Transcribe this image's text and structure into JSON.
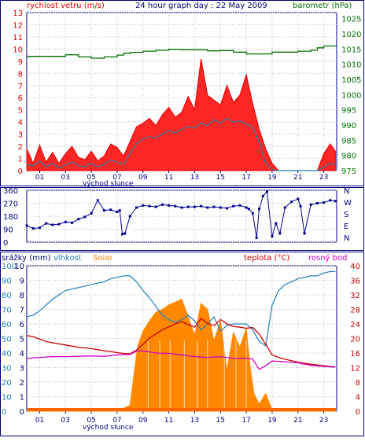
{
  "colors": {
    "wind": "#e00000",
    "gust_area": "#ff0000",
    "baro": "#007000",
    "dir": "#000090",
    "humidity": "#1f7fbf",
    "solar": "#ff8800",
    "temperature": "#cc0000",
    "dew": "#cc00cc",
    "rain": "#ff6600",
    "axis_blue": "#1f7fbf",
    "axis_navy": "#000080"
  },
  "chart_data": [
    {
      "type": "line",
      "title": "24 hour graph day : 22 May 2009",
      "left_label": "rychlost vetru (m/s)",
      "right_label": "barometr (hPa)",
      "x_ticks": [
        "01",
        "03",
        "05",
        "07",
        "09",
        "11",
        "13",
        "15",
        "17",
        "19",
        "21",
        "23"
      ],
      "x_extra_ticks": [
        "13",
        "15",
        "17"
      ],
      "x_note": "východ slunce",
      "x_range": [
        0,
        24
      ],
      "y_left": {
        "ticks": [
          "0",
          "1",
          "2",
          "3",
          "4",
          "5",
          "6",
          "7",
          "8",
          "9",
          "10",
          "11",
          "12",
          "13"
        ],
        "range": [
          0,
          13
        ]
      },
      "y_right": {
        "ticks": [
          "975",
          "980",
          "985",
          "990",
          "995",
          "1000",
          "1005",
          "1010",
          "1015",
          "1020",
          "1025"
        ],
        "range": [
          975,
          1027
        ]
      },
      "series": [
        {
          "name": "",
          "axis": "left",
          "kind": "wind_avg",
          "x": [
            0,
            0.5,
            1,
            1.5,
            2,
            2.5,
            3,
            3.5,
            4,
            4.5,
            5,
            5.5,
            6,
            6.5,
            7,
            7.5,
            8,
            8.5,
            9,
            9.5,
            10,
            10.5,
            11,
            11.5,
            12,
            12.5,
            13,
            13.5,
            14,
            14.5,
            15,
            15.5,
            16,
            16.5,
            17,
            17.5,
            18,
            18.5,
            19,
            19.5,
            20,
            20.5,
            21,
            21.5,
            22,
            22.5,
            23,
            23.5,
            23.9
          ],
          "y": [
            0.5,
            0.4,
            0.8,
            0.3,
            0.6,
            0.2,
            0.5,
            0.7,
            0.4,
            0.3,
            0.6,
            0.3,
            0.5,
            0.9,
            0.7,
            0.5,
            1.4,
            2.2,
            2.6,
            2.8,
            2.7,
            3.0,
            3.3,
            3.1,
            3.4,
            3.6,
            3.5,
            3.9,
            3.7,
            4.2,
            3.9,
            4.3,
            4.0,
            4.1,
            3.8,
            3.6,
            2.3,
            0.6,
            0.1,
            0.0,
            0.0,
            0.0,
            0.0,
            0.0,
            0.0,
            0.0,
            0.3,
            0.6,
            0.5
          ]
        },
        {
          "name": "",
          "axis": "left",
          "kind": "wind_gust",
          "x": [
            0,
            0.5,
            1,
            1.5,
            2,
            2.5,
            3,
            3.5,
            4,
            4.5,
            5,
            5.5,
            6,
            6.5,
            7,
            7.5,
            8,
            8.5,
            9,
            9.5,
            10,
            10.5,
            11,
            11.5,
            12,
            12.5,
            13,
            13.5,
            14,
            14.5,
            15,
            15.5,
            16,
            16.5,
            17,
            17.5,
            18,
            18.5,
            19,
            19.5,
            20,
            20.5,
            21,
            21.5,
            22,
            22.5,
            23,
            23.5,
            23.9
          ],
          "y": [
            1.8,
            0.6,
            2.1,
            0.7,
            1.5,
            0.6,
            1.4,
            2.0,
            1.1,
            0.9,
            1.6,
            0.8,
            1.2,
            2.2,
            1.9,
            1.2,
            2.4,
            3.6,
            3.9,
            4.3,
            3.7,
            4.6,
            5.2,
            4.4,
            4.8,
            6.1,
            5.0,
            9.2,
            6.2,
            5.8,
            5.4,
            7.0,
            5.6,
            6.2,
            7.9,
            5.5,
            3.4,
            1.8,
            0.6,
            0.0,
            0.0,
            0.0,
            0.0,
            0.0,
            0.0,
            0.0,
            1.4,
            2.2,
            1.6
          ]
        },
        {
          "name": "",
          "axis": "right",
          "kind": "pressure",
          "x": [
            0,
            1,
            2,
            3,
            4,
            5,
            6,
            7,
            7.5,
            8,
            9,
            10,
            11,
            12,
            13,
            14,
            15,
            16,
            17,
            18,
            19,
            20,
            21,
            22,
            22.5,
            23,
            24
          ],
          "y": [
            1012.6,
            1012.6,
            1012.6,
            1013.1,
            1012.4,
            1012.0,
            1012.4,
            1013.0,
            1013.6,
            1013.9,
            1014.3,
            1014.6,
            1014.9,
            1014.8,
            1014.8,
            1014.4,
            1014.5,
            1014.0,
            1013.4,
            1013.4,
            1014.0,
            1014.0,
            1014.3,
            1014.6,
            1015.4,
            1016.0,
            1016.0
          ]
        }
      ]
    },
    {
      "type": "scatter",
      "right_labels": [
        "N",
        "W",
        "S",
        "E",
        "N"
      ],
      "y_ticks": [
        "360",
        "270",
        "180",
        "90",
        "0"
      ],
      "y_range": [
        0,
        360
      ],
      "x_range": [
        0,
        24
      ],
      "series": [
        {
          "name": "",
          "kind": "wind_direction",
          "x": [
            0,
            0.5,
            1,
            1.5,
            2,
            2.5,
            3,
            3.5,
            4,
            4.5,
            5,
            5.5,
            6,
            6.5,
            7,
            7.2,
            7.4,
            7.6,
            8,
            8.5,
            9,
            9.5,
            10,
            10.5,
            11,
            11.5,
            12,
            12.5,
            13,
            13.5,
            14,
            14.5,
            15,
            15.5,
            16,
            16.5,
            17,
            17.2,
            17.5,
            17.8,
            18,
            18.3,
            18.6,
            19,
            19.3,
            19.6,
            20,
            20.5,
            21,
            21.2,
            21.5,
            22,
            22.5,
            23,
            23.5,
            23.9
          ],
          "y": [
            115,
            95,
            100,
            130,
            120,
            125,
            140,
            135,
            160,
            175,
            200,
            290,
            220,
            225,
            210,
            220,
            55,
            60,
            180,
            240,
            255,
            250,
            245,
            260,
            255,
            250,
            240,
            245,
            245,
            250,
            240,
            245,
            240,
            235,
            250,
            255,
            240,
            230,
            200,
            30,
            230,
            320,
            350,
            40,
            130,
            60,
            240,
            280,
            300,
            250,
            60,
            260,
            270,
            275,
            290,
            285
          ]
        }
      ]
    },
    {
      "type": "line",
      "left_label": "srážky (mm)",
      "left_label2": "vlhkost",
      "left_label3": "Solar",
      "right_label": "teplota (°C)",
      "right_label2": "rosný bod",
      "x_ticks": [
        "01",
        "03",
        "05",
        "07",
        "09",
        "11",
        "13",
        "15",
        "17",
        "19",
        "21",
        "23"
      ],
      "x_extra_ticks": [
        "13",
        "15",
        "17"
      ],
      "x_note": "východ slunce",
      "x_range": [
        0,
        24
      ],
      "y_left_outer": {
        "ticks": [
          "0",
          "10",
          "20",
          "30",
          "40",
          "50",
          "60",
          "70",
          "80",
          "90",
          "100"
        ],
        "range": [
          0,
          100
        ]
      },
      "y_left_inner": {
        "ticks": [
          "0",
          "1",
          "2",
          "3",
          "4",
          "5",
          "6",
          "7",
          "8",
          "9",
          "10"
        ],
        "range": [
          0,
          10
        ]
      },
      "y_right": {
        "ticks": [
          "0",
          "4",
          "8",
          "12",
          "16",
          "20",
          "24",
          "28",
          "32",
          "36",
          "40"
        ],
        "range": [
          0,
          40
        ]
      },
      "series": [
        {
          "name": "vlhkost",
          "axis": "left_outer",
          "kind": "humidity",
          "x": [
            0,
            0.5,
            1,
            1.5,
            2,
            2.5,
            3,
            3.5,
            4,
            4.5,
            5,
            5.5,
            6,
            6.5,
            7,
            7.5,
            8,
            8.5,
            9,
            9.5,
            10,
            10.5,
            11,
            11.5,
            12,
            12.5,
            13,
            13.5,
            14,
            14.5,
            15,
            15.5,
            16,
            16.5,
            17,
            17.5,
            18,
            18.5,
            19,
            19.5,
            20,
            20.5,
            21,
            21.5,
            22,
            22.5,
            23,
            23.5,
            23.9
          ],
          "y": [
            65,
            66,
            69,
            73,
            77,
            80,
            83,
            84,
            85,
            86,
            87,
            88,
            89,
            91,
            92,
            93,
            93,
            89,
            83,
            78,
            72,
            66,
            63,
            61,
            63,
            66,
            62,
            56,
            60,
            65,
            55,
            59,
            60,
            60,
            60,
            56,
            48,
            45,
            73,
            83,
            87,
            89,
            91,
            92,
            93,
            93,
            95,
            96,
            96
          ]
        },
        {
          "name": "teplota (°C)",
          "axis": "right",
          "kind": "temperature",
          "x": [
            0,
            0.5,
            1,
            1.5,
            2,
            2.5,
            3,
            3.5,
            4,
            4.5,
            5,
            5.5,
            6,
            6.5,
            7,
            7.5,
            8,
            8.5,
            9,
            9.5,
            10,
            10.5,
            11,
            11.5,
            12,
            12.5,
            13,
            13.5,
            14,
            14.5,
            15,
            15.5,
            16,
            16.5,
            17,
            17.5,
            18,
            18.5,
            19,
            19.5,
            20,
            20.5,
            21,
            21.5,
            22,
            22.5,
            23,
            23.5,
            23.9
          ],
          "y": [
            20.8,
            20.5,
            19.8,
            19.2,
            18.8,
            18.5,
            18.2,
            17.9,
            17.6,
            17.4,
            17.2,
            16.9,
            16.6,
            16.4,
            16.1,
            15.9,
            15.8,
            16.8,
            18.4,
            20.1,
            21.2,
            22.4,
            23.2,
            24.0,
            24.6,
            23.9,
            23.1,
            25.5,
            24.2,
            23.5,
            25.2,
            24.0,
            23.3,
            23.1,
            22.8,
            23.0,
            21.2,
            18.4,
            15.5,
            14.8,
            14.3,
            13.9,
            13.5,
            13.2,
            12.9,
            12.7,
            12.5,
            12.3,
            12.2
          ]
        },
        {
          "name": "rosný bod",
          "axis": "right",
          "kind": "dew_point",
          "x": [
            0,
            1,
            2,
            3,
            4,
            5,
            6,
            7,
            8,
            8.5,
            9,
            10,
            11,
            12,
            13,
            14,
            15,
            16,
            17,
            17.5,
            18,
            18.5,
            19,
            20,
            21,
            22,
            23,
            23.9
          ],
          "y": [
            14.5,
            14.8,
            15.0,
            15.0,
            15.1,
            15.2,
            15.1,
            15.5,
            15.6,
            16.5,
            16.6,
            16.0,
            15.9,
            15.5,
            15.0,
            14.8,
            15.0,
            14.5,
            14.6,
            14.3,
            11.5,
            12.5,
            13.8,
            13.6,
            13.3,
            12.6,
            12.3,
            12.1
          ]
        },
        {
          "name": "Solar",
          "axis": "left_outer",
          "kind": "solar_area",
          "x": [
            0,
            6,
            6.5,
            7,
            7.5,
            8,
            8.3,
            8.6,
            9,
            9.5,
            10,
            10.5,
            11,
            11.5,
            12,
            12.5,
            13,
            13.5,
            14,
            14.5,
            15,
            15.5,
            16,
            16.5,
            17,
            17.3,
            17.6,
            18,
            18.5,
            19,
            24
          ],
          "y": [
            0,
            0,
            1,
            1,
            2,
            4,
            25,
            45,
            55,
            62,
            68,
            70,
            73,
            75,
            77,
            65,
            52,
            74,
            70,
            48,
            62,
            28,
            54,
            44,
            57,
            30,
            12,
            5,
            12,
            1,
            0
          ]
        },
        {
          "name": "srážky (mm)",
          "axis": "left_inner",
          "kind": "rain",
          "x": [
            0,
            24
          ],
          "y": [
            0,
            0
          ]
        }
      ]
    }
  ]
}
